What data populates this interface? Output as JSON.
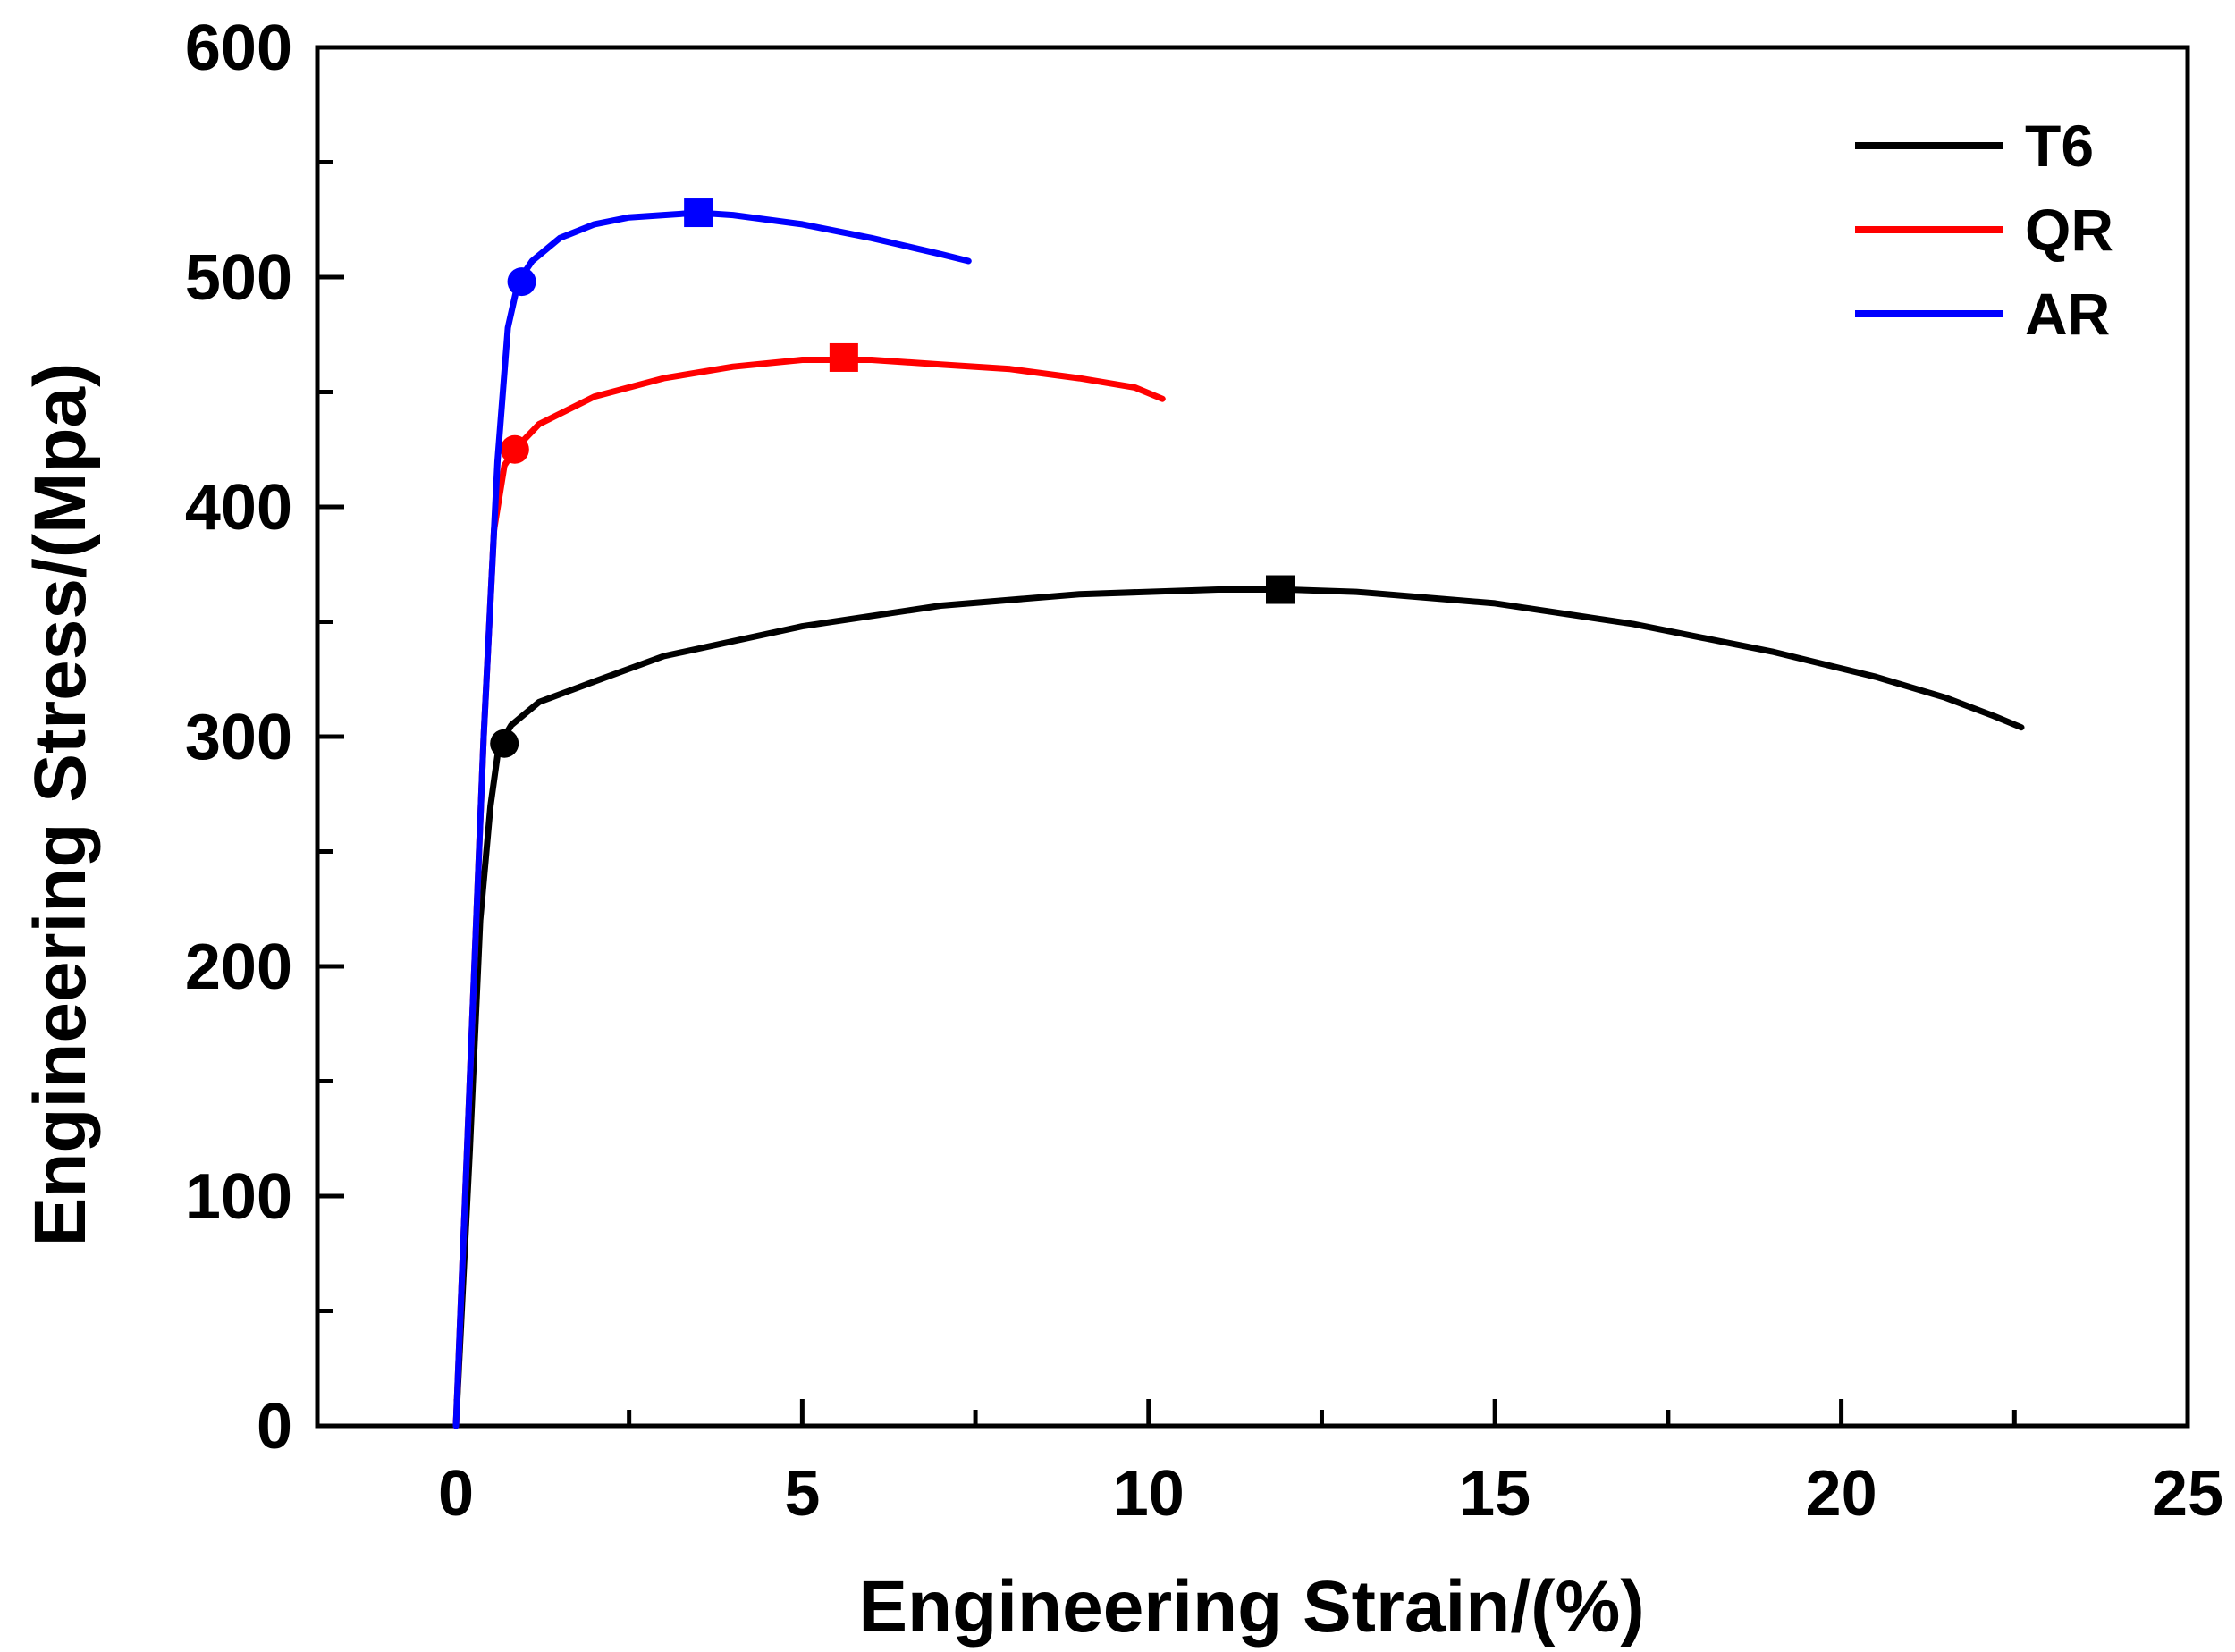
{
  "chart_data": {
    "type": "line",
    "title": "",
    "xlabel": "Engineering Strain/(%)",
    "ylabel": "Engineering Stress/(Mpa)",
    "xlim": [
      -2,
      25
    ],
    "ylim": [
      0,
      600
    ],
    "xticks": [
      0,
      5,
      10,
      15,
      20,
      25
    ],
    "xtick_labels": [
      "0",
      "5",
      "10",
      "15",
      "20",
      "25"
    ],
    "yticks": [
      0,
      100,
      200,
      300,
      400,
      500,
      600
    ],
    "ytick_labels": [
      "0",
      "100",
      "200",
      "300",
      "400",
      "500",
      "600"
    ],
    "x_minor_step": 2.5,
    "y_minor_step": 50,
    "grid": false,
    "legend_position": "top-right",
    "series": [
      {
        "name": "T6",
        "color": "#000000",
        "x": [
          0.0,
          0.2,
          0.35,
          0.5,
          0.62,
          0.8,
          1.2,
          2,
          3,
          5,
          7,
          9,
          11,
          12,
          13,
          15,
          17,
          19,
          20.5,
          21.5,
          22.2,
          22.6
        ],
        "y": [
          0,
          120,
          220,
          270,
          296,
          305,
          315,
          324,
          335,
          348,
          357,
          362,
          364,
          364,
          363,
          358,
          349,
          337,
          326,
          317,
          309,
          304
        ],
        "yield_point": [
          0.7,
          297
        ],
        "uts_point": [
          11.9,
          364
        ]
      },
      {
        "name": "QR",
        "color": "#ff0000",
        "x": [
          0.0,
          0.2,
          0.4,
          0.55,
          0.7,
          0.85,
          1.2,
          2,
          3,
          4,
          5,
          6,
          7,
          8,
          9,
          9.8,
          10.2
        ],
        "y": [
          0,
          150,
          300,
          390,
          418,
          425,
          436,
          448,
          456,
          461,
          464,
          464,
          462,
          460,
          456,
          452,
          447
        ],
        "yield_point": [
          0.85,
          425
        ],
        "uts_point": [
          5.6,
          465
        ]
      },
      {
        "name": "AR",
        "color": "#0000ff",
        "x": [
          0.0,
          0.2,
          0.4,
          0.6,
          0.75,
          0.9,
          1.1,
          1.5,
          2,
          2.5,
          3,
          3.5,
          4,
          5,
          6,
          7,
          7.4
        ],
        "y": [
          0,
          150,
          300,
          420,
          478,
          498,
          507,
          517,
          523,
          526,
          527,
          528,
          527,
          523,
          517,
          510,
          507
        ],
        "yield_point": [
          0.95,
          498
        ],
        "uts_point": [
          3.5,
          528
        ]
      }
    ]
  }
}
